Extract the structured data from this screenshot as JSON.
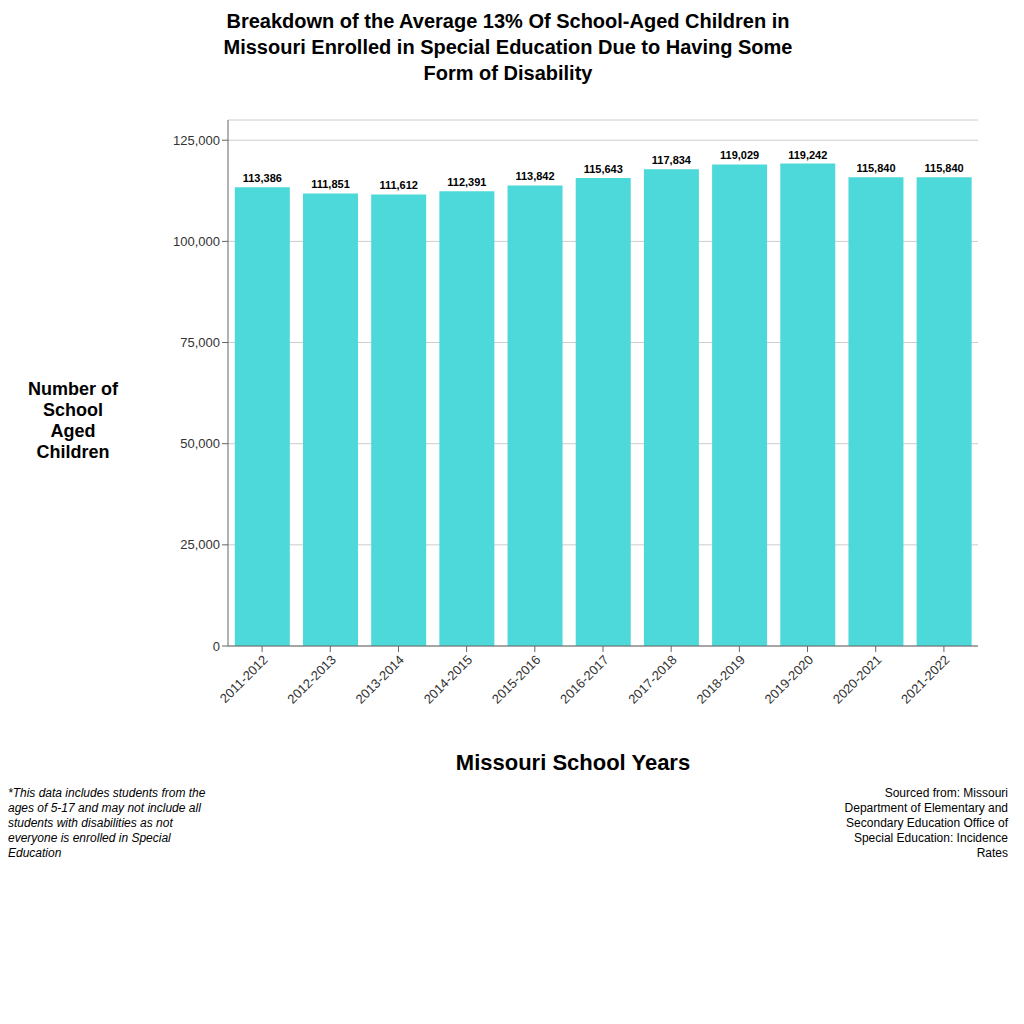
{
  "chart_data": {
    "type": "bar",
    "title": "Breakdown of the Average 13% Of School-Aged Children in\nMissouri  Enrolled in Special Education Due to Having Some\nForm of Disability",
    "xlabel": "Missouri School Years",
    "ylabel": "Number of\nSchool\nAged\nChildren",
    "categories": [
      "2011-2012",
      "2012-2013",
      "2013-2014",
      "2014-2015",
      "2015-2016",
      "2016-2017",
      "2017-2018",
      "2018-2019",
      "2019-2020",
      "2020-2021",
      "2021-2022"
    ],
    "values": [
      113386,
      111851,
      111612,
      112391,
      113842,
      115643,
      117834,
      119029,
      119242,
      115840,
      115840
    ],
    "value_labels": [
      "113,386",
      "111,851",
      "111,612",
      "112,391",
      "113,842",
      "115,643",
      "117,834",
      "119,029",
      "119,242",
      "115,840",
      "115,840"
    ],
    "data_labels": true,
    "color": "#4DD9D9",
    "ylim": [
      0,
      130000
    ],
    "yticks": [
      0,
      {
        "value": 25000,
        "label": "25,000"
      },
      {
        "value": 50000,
        "label": "50,000"
      },
      {
        "value": 75000,
        "label": "75,000"
      },
      {
        "value": 100000,
        "label": "100,000"
      },
      {
        "value": 125000,
        "label": "125,000"
      }
    ],
    "grid": true,
    "annotations": [
      "*This data includes students from the\nages of 5-17 and may not include all\nstudents with disabilities as not\neveryone is enrolled in Special\nEducation",
      "Sourced from: Missouri\nDepartment of Elementary and\nSecondary Education Office of\nSpecial Education: Incidence\nRates"
    ]
  }
}
